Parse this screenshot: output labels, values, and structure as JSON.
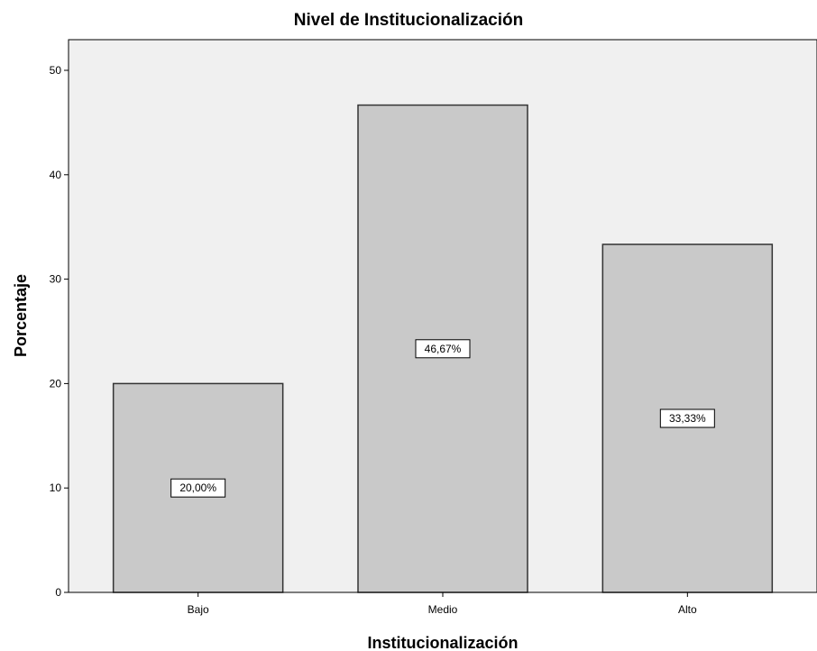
{
  "chart_data": {
    "type": "bar",
    "title": "Nivel de Institucionalización",
    "xlabel": "Institucionalización",
    "ylabel": "Porcentaje",
    "categories": [
      "Bajo",
      "Medio",
      "Alto"
    ],
    "values": [
      20.0,
      46.67,
      33.33
    ],
    "data_labels": [
      "20,00%",
      "46,67%",
      "33,33%"
    ],
    "ylim": [
      0,
      50
    ],
    "yticks": [
      "0",
      "10",
      "20",
      "30",
      "40",
      "50"
    ],
    "grid": false,
    "legend": "none",
    "colors": {
      "plot_background": "#f0f0f0",
      "bar_fill": "#c9c9c9",
      "bar_stroke": "#333333",
      "axis": "#000000"
    }
  }
}
